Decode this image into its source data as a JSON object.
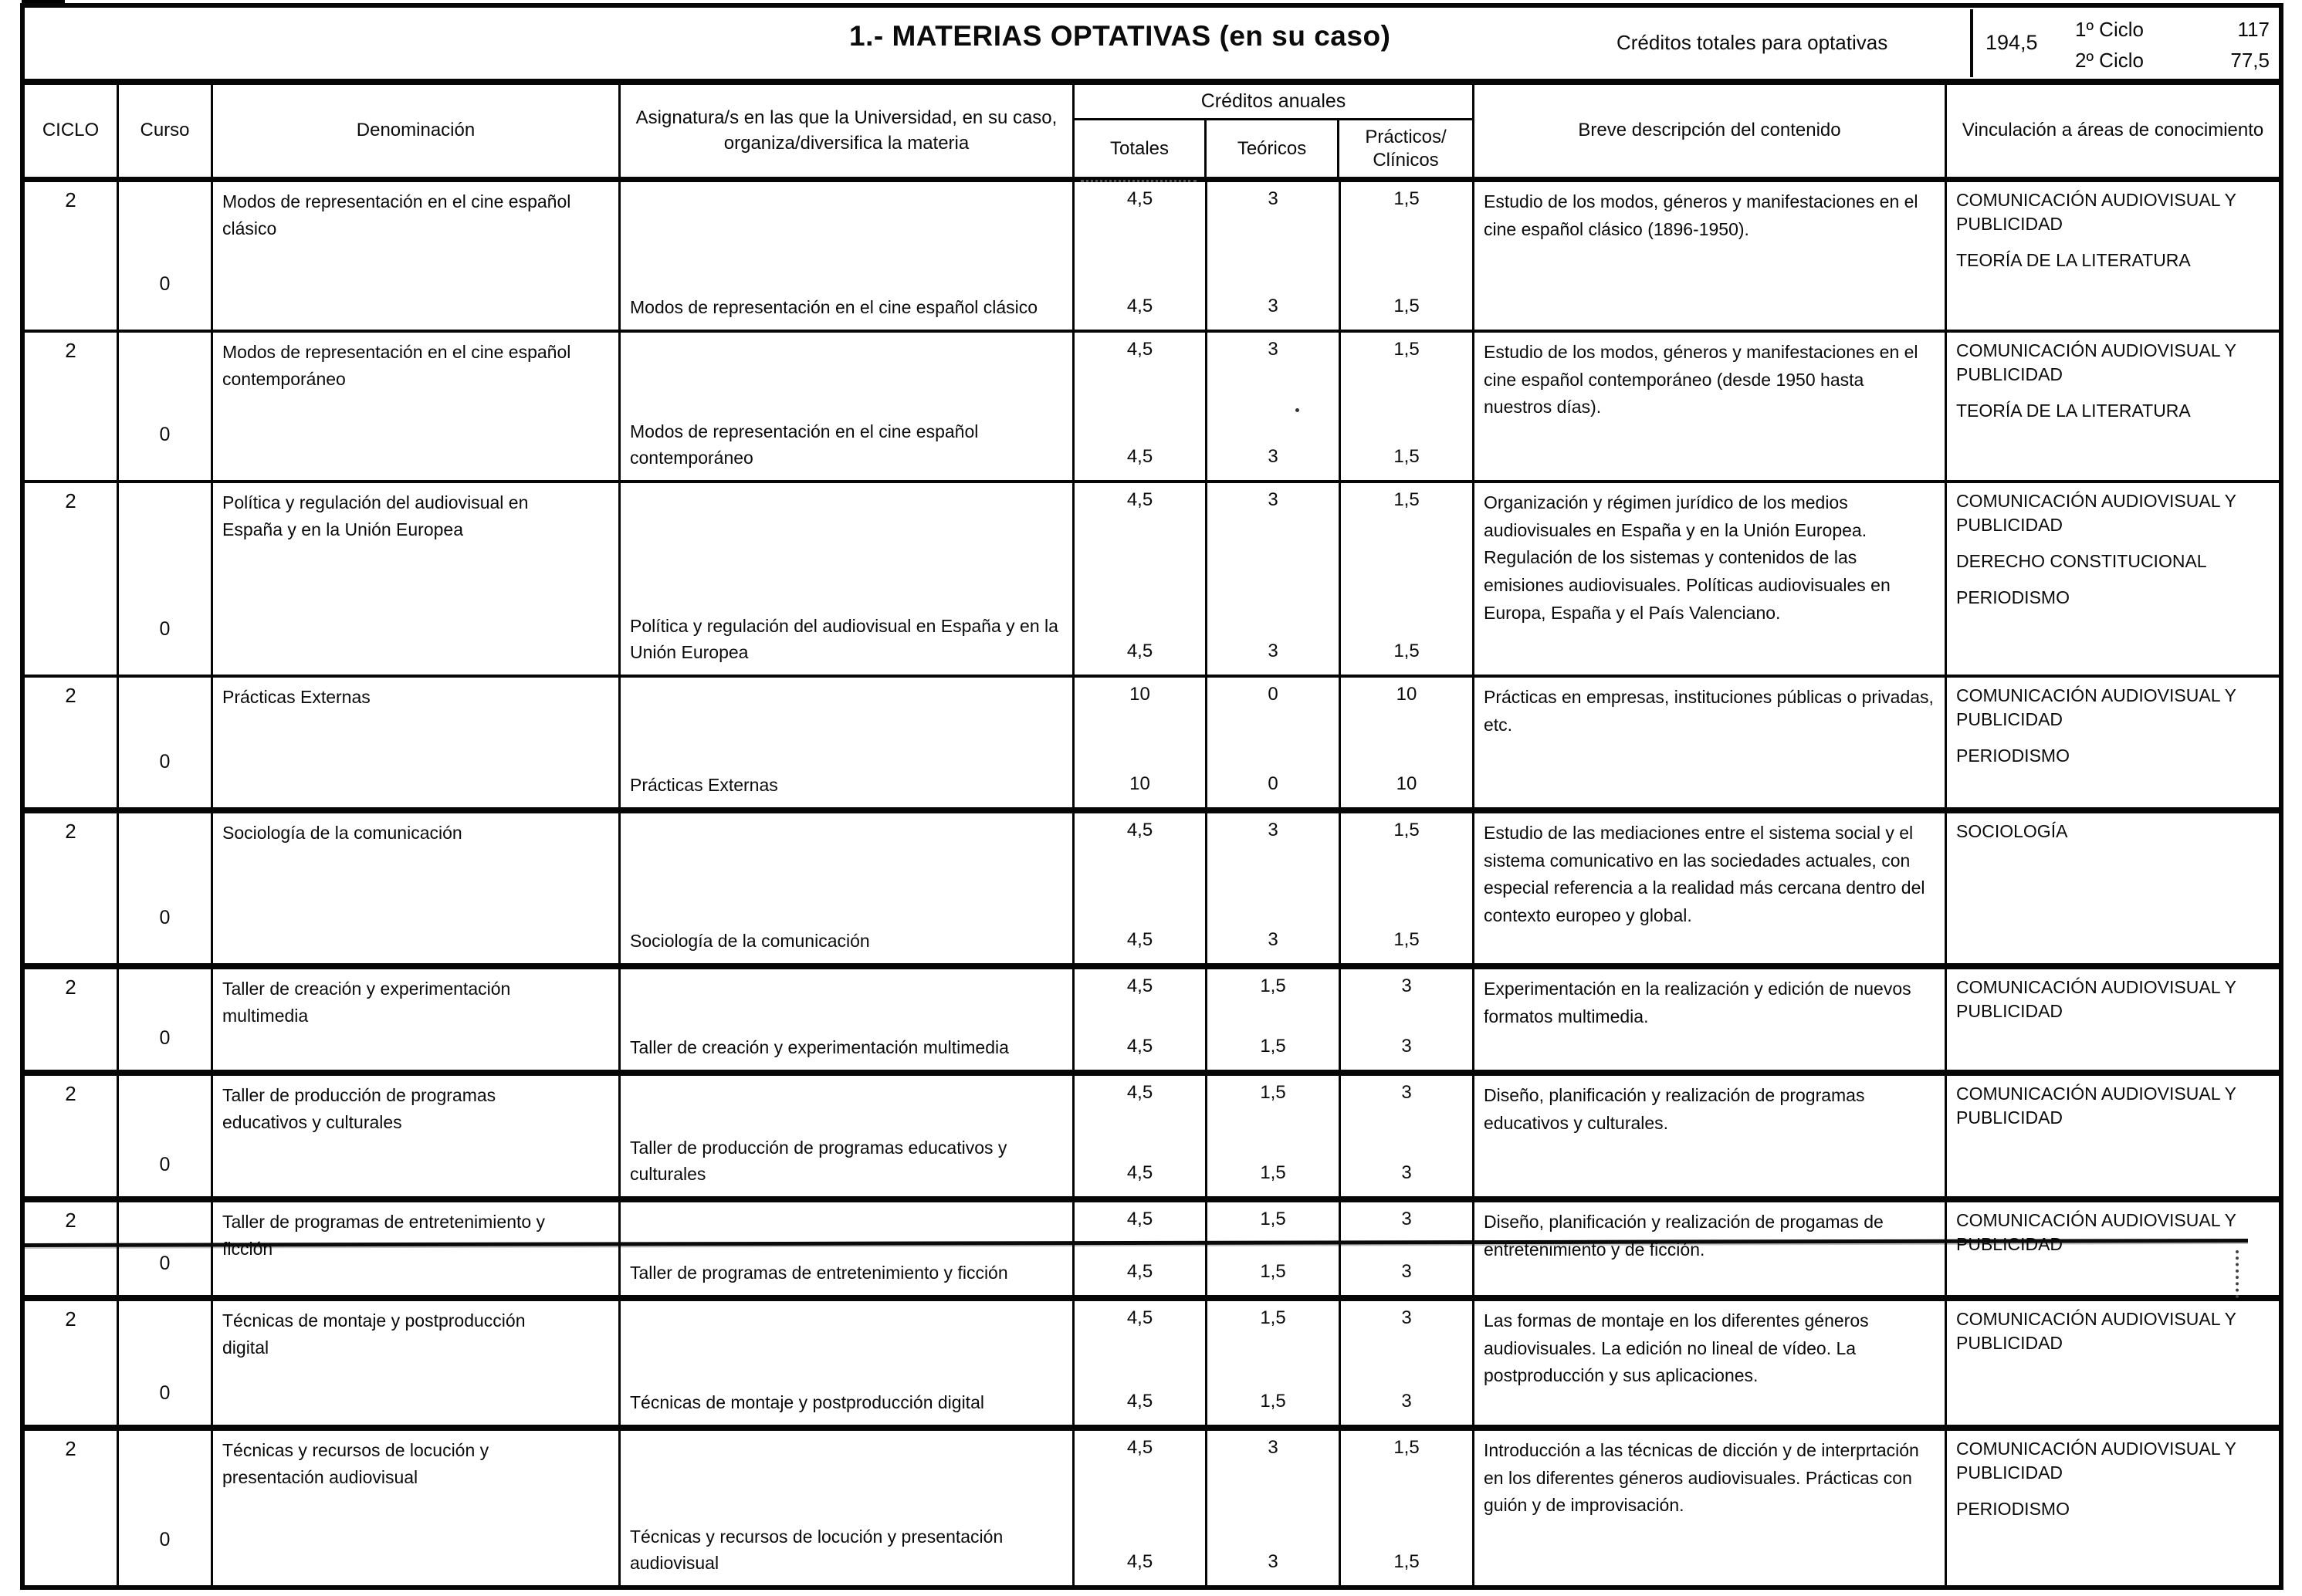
{
  "header": {
    "title": "1.- MATERIAS OPTATIVAS (en su caso)",
    "credits_label": "Créditos totales para optativas",
    "credits_total": "194,5",
    "ciclo1_label": "1º Ciclo",
    "ciclo1_value": "117",
    "ciclo2_label": "2º Ciclo",
    "ciclo2_value": "77,5"
  },
  "columns": {
    "ciclo": "CICLO",
    "curso": "Curso",
    "denominacion": "Denominación",
    "asignatura": "Asignatura/s en las que la Universidad, en su caso, organiza/diversifica la materia",
    "creditos_group": "Créditos anuales",
    "totales": "Totales",
    "teoricos": "Teóricos",
    "practicos_line1": "Prácticos/",
    "practicos_line2": "Clínicos",
    "descripcion": "Breve descripción del contenido",
    "vinculacion": "Vinculación a áreas de conocimiento"
  },
  "rows": [
    {
      "ciclo": "2",
      "curso": "0",
      "denominacion": "Modos de representación en el cine español clásico",
      "asignatura": "Modos de representación en el cine español clásico",
      "creditos_materia": {
        "totales": "4,5",
        "teoricos": "3",
        "practicos": "1,5"
      },
      "creditos_asignatura": {
        "totales": "4,5",
        "teoricos": "3",
        "practicos": "1,5"
      },
      "descripcion": "Estudio de los modos, géneros y manifestaciones en el cine español clásico (1896-1950).",
      "vinculacion": [
        "COMUNICACIÓN AUDIOVISUAL Y PUBLICIDAD",
        "TEORÍA DE LA LITERATURA"
      ]
    },
    {
      "ciclo": "2",
      "curso": "0",
      "denominacion": "Modos de representación en el cine español contemporáneo",
      "asignatura": "Modos de representación en el cine español contemporáneo",
      "creditos_materia": {
        "totales": "4,5",
        "teoricos": "3",
        "practicos": "1,5"
      },
      "creditos_asignatura": {
        "totales": "4,5",
        "teoricos": "3",
        "practicos": "1,5"
      },
      "descripcion": "Estudio de los modos, géneros y manifestaciones en el cine español contemporáneo (desde 1950 hasta nuestros días).",
      "vinculacion": [
        "COMUNICACIÓN AUDIOVISUAL Y PUBLICIDAD",
        "TEORÍA DE LA LITERATURA"
      ]
    },
    {
      "ciclo": "2",
      "curso": "0",
      "denominacion": "Política y regulación del audiovisual en España y en la Unión Europea",
      "asignatura": "Política y regulación del audiovisual en España y en la Unión Europea",
      "creditos_materia": {
        "totales": "4,5",
        "teoricos": "3",
        "practicos": "1,5"
      },
      "creditos_asignatura": {
        "totales": "4,5",
        "teoricos": "3",
        "practicos": "1,5"
      },
      "descripcion": "Organización y régimen jurídico de los medios audiovisuales en España y en la Unión Europea. Regulación de los sistemas y contenidos de las emisiones audiovisuales. Políticas audiovisuales en Europa, España y el País Valenciano.",
      "vinculacion": [
        "COMUNICACIÓN AUDIOVISUAL Y PUBLICIDAD",
        "DERECHO CONSTITUCIONAL",
        "PERIODISMO"
      ]
    },
    {
      "ciclo": "2",
      "curso": "0",
      "denominacion": "Prácticas Externas",
      "asignatura": "Prácticas Externas",
      "creditos_materia": {
        "totales": "10",
        "teoricos": "0",
        "practicos": "10"
      },
      "creditos_asignatura": {
        "totales": "10",
        "teoricos": "0",
        "practicos": "10"
      },
      "descripcion": "Prácticas en empresas, instituciones públicas o privadas, etc.",
      "vinculacion": [
        "COMUNICACIÓN AUDIOVISUAL Y PUBLICIDAD",
        "PERIODISMO"
      ]
    },
    {
      "ciclo": "2",
      "curso": "0",
      "denominacion": "Sociología de la comunicación",
      "asignatura": "Sociología de la comunicación",
      "creditos_materia": {
        "totales": "4,5",
        "teoricos": "3",
        "practicos": "1,5"
      },
      "creditos_asignatura": {
        "totales": "4,5",
        "teoricos": "3",
        "practicos": "1,5"
      },
      "descripcion": "Estudio de las mediaciones entre el sistema social y el sistema comunicativo en las sociedades actuales, con especial referencia a la realidad más cercana dentro del contexto europeo y global.",
      "vinculacion": [
        "SOCIOLOGÍA"
      ]
    },
    {
      "ciclo": "2",
      "curso": "0",
      "denominacion": "Taller de creación y experimentación multimedia",
      "asignatura": "Taller de creación y experimentación multimedia",
      "creditos_materia": {
        "totales": "4,5",
        "teoricos": "1,5",
        "practicos": "3"
      },
      "creditos_asignatura": {
        "totales": "4,5",
        "teoricos": "1,5",
        "practicos": "3"
      },
      "descripcion": "Experimentación en la realización y edición de nuevos formatos multimedia.",
      "vinculacion": [
        "COMUNICACIÓN AUDIOVISUAL Y PUBLICIDAD"
      ]
    },
    {
      "ciclo": "2",
      "curso": "0",
      "denominacion": "Taller de producción de programas educativos y culturales",
      "asignatura": "Taller de producción de programas educativos y culturales",
      "creditos_materia": {
        "totales": "4,5",
        "teoricos": "1,5",
        "practicos": "3"
      },
      "creditos_asignatura": {
        "totales": "4,5",
        "teoricos": "1,5",
        "practicos": "3"
      },
      "descripcion": "Diseño, planificación y realización de programas educativos y culturales.",
      "vinculacion": [
        "COMUNICACIÓN AUDIOVISUAL Y PUBLICIDAD"
      ]
    },
    {
      "ciclo": "2",
      "curso": "0",
      "denominacion": "Taller de programas de entretenimiento y ficción",
      "asignatura": "Taller de programas de entretenimiento y ficción",
      "creditos_materia": {
        "totales": "4,5",
        "teoricos": "1,5",
        "practicos": "3"
      },
      "creditos_asignatura": {
        "totales": "4,5",
        "teoricos": "1,5",
        "practicos": "3"
      },
      "descripcion": "Diseño, planificación y realización de progamas de entretenimiento y de ficción.",
      "vinculacion": [
        "COMUNICACIÓN AUDIOVISUAL Y PUBLICIDAD"
      ]
    },
    {
      "ciclo": "2",
      "curso": "0",
      "denominacion": "Técnicas de montaje y postproducción digital",
      "asignatura": "Técnicas de montaje y postproducción digital",
      "creditos_materia": {
        "totales": "4,5",
        "teoricos": "1,5",
        "practicos": "3"
      },
      "creditos_asignatura": {
        "totales": "4,5",
        "teoricos": "1,5",
        "practicos": "3"
      },
      "descripcion": "Las formas de montaje en los diferentes géneros audiovisuales. La edición no lineal de vídeo. La postproducción y sus aplicaciones.",
      "vinculacion": [
        "COMUNICACIÓN AUDIOVISUAL Y PUBLICIDAD"
      ]
    },
    {
      "ciclo": "2",
      "curso": "0",
      "denominacion": "Técnicas y recursos de locución y presentación audiovisual",
      "asignatura": "Técnicas y recursos de locución y presentación audiovisual",
      "creditos_materia": {
        "totales": "4,5",
        "teoricos": "3",
        "practicos": "1,5"
      },
      "creditos_asignatura": {
        "totales": "4,5",
        "teoricos": "3",
        "practicos": "1,5"
      },
      "descripcion": "Introducción a las técnicas de dicción y de interprtación en los diferentes géneros audiovisuales. Prácticas con guión y de improvisación.",
      "vinculacion": [
        "COMUNICACIÓN AUDIOVISUAL Y PUBLICIDAD",
        "PERIODISMO"
      ]
    }
  ]
}
